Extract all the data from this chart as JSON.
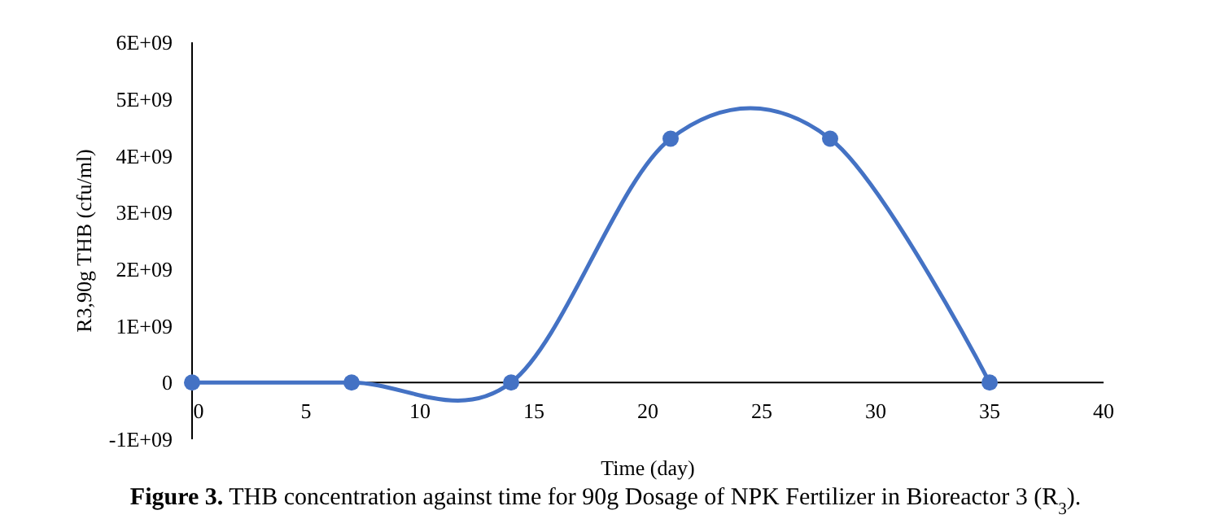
{
  "chart_data": {
    "type": "line",
    "title": "Figure 3. THB concentration against time for 90g Dosage of NPK Fertilizer in Bioreactor 3 (R$_{3}$).",
    "xlabel": "Time (day)",
    "ylabel": "R3,90g THB (cfu/ml)",
    "x": [
      0,
      7,
      14,
      21,
      28,
      35
    ],
    "series": [
      {
        "color": "#4472c4",
        "values": [
          0,
          0,
          0,
          4300000000.0,
          4300000000.0,
          0
        ]
      }
    ],
    "xlim": [
      0,
      40
    ],
    "xticks": [
      0,
      5,
      10,
      15,
      20,
      25,
      30,
      35,
      40
    ],
    "ylim": [
      -1000000000.0,
      6000000000.0
    ],
    "yticks": [
      {
        "value": -1000000000.0,
        "label": "-1E+09"
      },
      {
        "value": 0,
        "label": "0"
      },
      {
        "value": 1000000000.0,
        "label": "1E+09"
      },
      {
        "value": 2000000000.0,
        "label": "2E+09"
      },
      {
        "value": 3000000000.0,
        "label": "3E+09"
      },
      {
        "value": 4000000000.0,
        "label": "4E+09"
      },
      {
        "value": 5000000000.0,
        "label": "5E+09"
      },
      {
        "value": 6000000000.0,
        "label": "6E+09"
      }
    ],
    "marker": "circle"
  }
}
